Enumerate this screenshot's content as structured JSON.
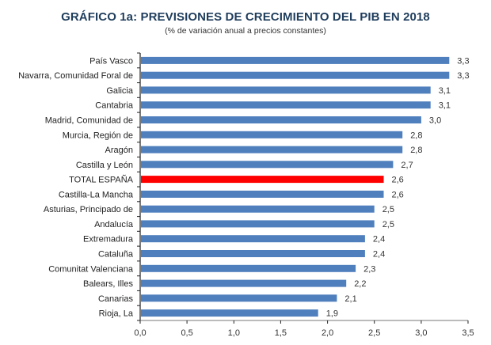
{
  "chart_data": {
    "type": "bar",
    "orientation": "horizontal",
    "title": "GRÁFICO 1a: PREVISIONES DE CRECIMIENTO DEL PIB EN 2018",
    "subtitle": "(% de variación anual a precios constantes)",
    "xlabel": "",
    "ylabel": "",
    "xlim": [
      0,
      3.5
    ],
    "xticks": [
      0.0,
      0.5,
      1.0,
      1.5,
      2.0,
      2.5,
      3.0,
      3.5
    ],
    "xtick_labels": [
      "0,0",
      "0,5",
      "1,0",
      "1,5",
      "2,0",
      "2,5",
      "3,0",
      "3,5"
    ],
    "grid": false,
    "legend": "none",
    "categories": [
      "País Vasco",
      "Navarra, Comunidad Foral de",
      "Galicia",
      "Cantabria",
      "Madrid, Comunidad de",
      "Murcia, Región de",
      "Aragón",
      "Castilla y León",
      "TOTAL ESPAÑA",
      "Castilla-La Mancha",
      "Asturias, Principado de",
      "Andalucía",
      "Extremadura",
      "Cataluña",
      "Comunitat Valenciana",
      "Balears, Illes",
      "Canarias",
      "Rioja, La"
    ],
    "values": [
      3.3,
      3.3,
      3.1,
      3.1,
      3.0,
      2.8,
      2.8,
      2.7,
      2.6,
      2.6,
      2.5,
      2.5,
      2.4,
      2.4,
      2.3,
      2.2,
      2.1,
      1.9
    ],
    "value_labels": [
      "3,3",
      "3,3",
      "3,1",
      "3,1",
      "3,0",
      "2,8",
      "2,8",
      "2,7",
      "2,6",
      "2,6",
      "2,5",
      "2,5",
      "2,4",
      "2,4",
      "2,3",
      "2,2",
      "2,1",
      "1,9"
    ],
    "highlight": "TOTAL ESPAÑA",
    "colors": {
      "bar": "#4f7fbd",
      "highlight": "#ff0000",
      "axis": "#222222",
      "title": "#1f3d5c"
    }
  }
}
